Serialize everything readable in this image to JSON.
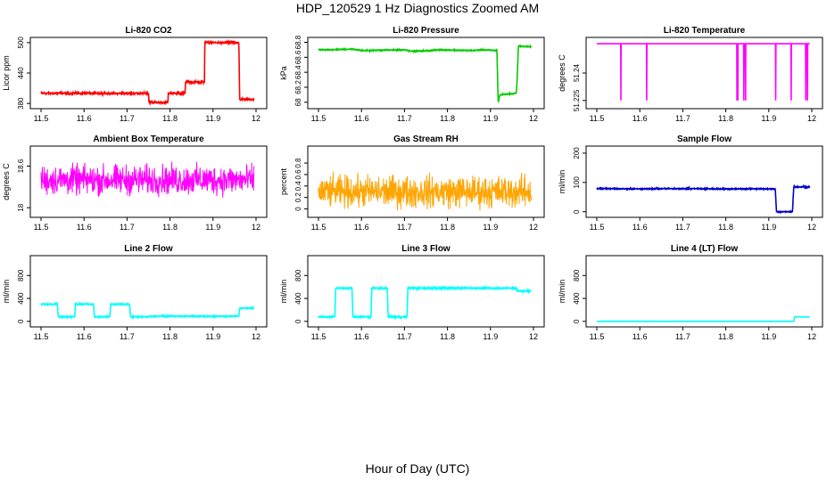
{
  "figure": {
    "title": "HDP_120529  1 Hz Diagnostics Zoomed AM",
    "xlabel": "Hour of Day (UTC)"
  },
  "chart_data": [
    {
      "type": "line",
      "title": "Li-820 CO2",
      "ylabel": "Licor ppm",
      "color": "#ff0000",
      "xlim": [
        11.5,
        12.0
      ],
      "xticks": [
        11.5,
        11.6,
        11.7,
        11.8,
        11.9,
        12.0
      ],
      "ylim": [
        375,
        505
      ],
      "yticks": [
        380,
        440,
        500
      ],
      "noise": 1.5,
      "series": [
        {
          "x": [
            11.5,
            11.75,
            11.751,
            11.795,
            11.796,
            11.835,
            11.836,
            11.88,
            11.881,
            11.96,
            11.962,
            11.995
          ],
          "y": [
            400,
            400,
            382,
            382,
            400,
            400,
            422,
            422,
            500,
            500,
            388,
            388
          ]
        }
      ]
    },
    {
      "type": "line",
      "title": "Li-820 Pressure",
      "ylabel": "kPa",
      "color": "#00cc00",
      "xlim": [
        11.5,
        12.0
      ],
      "xticks": [
        11.5,
        11.6,
        11.7,
        11.8,
        11.9,
        12.0
      ],
      "ylim": [
        67.95,
        68.83
      ],
      "yticks": [
        68.0,
        68.2,
        68.4,
        68.6,
        68.8
      ],
      "noise": 0.005,
      "series": [
        {
          "x": [
            11.5,
            11.52,
            11.58,
            11.6,
            11.7,
            11.72,
            11.76,
            11.78,
            11.86,
            11.88,
            11.915,
            11.918,
            11.922,
            11.96,
            11.962,
            11.965,
            11.995
          ],
          "y": [
            68.7,
            68.7,
            68.71,
            68.69,
            68.7,
            68.68,
            68.69,
            68.7,
            68.69,
            68.7,
            68.69,
            68.0,
            68.1,
            68.12,
            68.3,
            68.75,
            68.74
          ]
        }
      ]
    },
    {
      "type": "line",
      "title": "Li-820 Temperature",
      "ylabel": "degrees C",
      "color": "#ff00ff",
      "xlim": [
        11.5,
        12.0
      ],
      "xticks": [
        11.5,
        11.6,
        11.7,
        11.8,
        11.9,
        12.0
      ],
      "ylim": [
        51.222,
        51.258
      ],
      "yticks": [
        51.225,
        51.24
      ],
      "noise": 0,
      "baseline": 51.256,
      "spikes": [
        11.556,
        11.616,
        11.826,
        11.828,
        11.842,
        11.846,
        11.916,
        11.952,
        11.986,
        11.99
      ],
      "spike_min": 51.225
    },
    {
      "type": "line",
      "title": "Ambient Box Temperature",
      "ylabel": "degrees C",
      "color": "#ff00ff",
      "xlim": [
        11.5,
        12.0
      ],
      "xticks": [
        11.5,
        11.6,
        11.7,
        11.8,
        11.9,
        12.0
      ],
      "ylim": [
        17.9,
        18.85
      ],
      "yticks": [
        18.0,
        18.6
      ],
      "noise_band": [
        18.0,
        18.8
      ],
      "center": 18.4
    },
    {
      "type": "line",
      "title": "Gas Stream RH",
      "ylabel": "percent",
      "color": "#ffa500",
      "xlim": [
        11.5,
        12.0
      ],
      "xticks": [
        11.5,
        11.6,
        11.7,
        11.8,
        11.9,
        12.0
      ],
      "ylim": [
        -0.1,
        1.05
      ],
      "yticks": [
        0.0,
        0.2,
        0.4,
        0.6,
        0.8
      ],
      "noise_band": [
        -0.05,
        1.0
      ],
      "center": 0.3
    },
    {
      "type": "line",
      "title": "Sample Flow",
      "ylabel": "ml/min",
      "color": "#0000cc",
      "xlim": [
        11.5,
        12.0
      ],
      "xticks": [
        11.5,
        11.6,
        11.7,
        11.8,
        11.9,
        12.0
      ],
      "ylim": [
        -10,
        215
      ],
      "yticks": [
        0,
        100,
        200
      ],
      "noise": 1.5,
      "series": [
        {
          "x": [
            11.5,
            11.6,
            11.7,
            11.8,
            11.915,
            11.918,
            11.955,
            11.958,
            11.995
          ],
          "y": [
            79,
            78,
            79,
            78,
            78,
            0,
            0,
            85,
            84
          ]
        }
      ]
    },
    {
      "type": "line",
      "title": "Line 2 Flow",
      "ylabel": "ml/min",
      "color": "#00ffff",
      "xlim": [
        11.5,
        12.0
      ],
      "xticks": [
        11.5,
        11.6,
        11.7,
        11.8,
        11.9,
        12.0
      ],
      "ylim": [
        -50,
        1100
      ],
      "yticks": [
        0,
        400,
        800
      ],
      "noise": 8,
      "series": [
        {
          "x": [
            11.5,
            11.538,
            11.54,
            11.578,
            11.58,
            11.622,
            11.624,
            11.66,
            11.662,
            11.706,
            11.708,
            11.75,
            11.752,
            11.96,
            11.962,
            11.995
          ],
          "y": [
            300,
            300,
            80,
            80,
            300,
            300,
            80,
            80,
            300,
            300,
            80,
            80,
            90,
            90,
            230,
            230
          ]
        }
      ]
    },
    {
      "type": "line",
      "title": "Line 3 Flow",
      "ylabel": "ml/min",
      "color": "#00ffff",
      "xlim": [
        11.5,
        12.0
      ],
      "xticks": [
        11.5,
        11.6,
        11.7,
        11.8,
        11.9,
        12.0
      ],
      "ylim": [
        -50,
        1100
      ],
      "yticks": [
        0,
        400,
        800
      ],
      "noise": 10,
      "series": [
        {
          "x": [
            11.5,
            11.538,
            11.54,
            11.578,
            11.58,
            11.622,
            11.624,
            11.66,
            11.662,
            11.706,
            11.708,
            11.96,
            11.962,
            11.995
          ],
          "y": [
            80,
            80,
            580,
            580,
            80,
            80,
            580,
            580,
            80,
            80,
            580,
            580,
            530,
            530
          ]
        }
      ]
    },
    {
      "type": "line",
      "title": "Line 4 (LT) Flow",
      "ylabel": "ml/min",
      "color": "#00ffff",
      "xlim": [
        11.5,
        12.0
      ],
      "xticks": [
        11.5,
        11.6,
        11.7,
        11.8,
        11.9,
        12.0
      ],
      "ylim": [
        -50,
        1100
      ],
      "yticks": [
        0,
        400,
        800
      ],
      "noise": 1,
      "series": [
        {
          "x": [
            11.5,
            11.958,
            11.96,
            11.995
          ],
          "y": [
            0,
            0,
            80,
            75
          ]
        }
      ]
    }
  ]
}
